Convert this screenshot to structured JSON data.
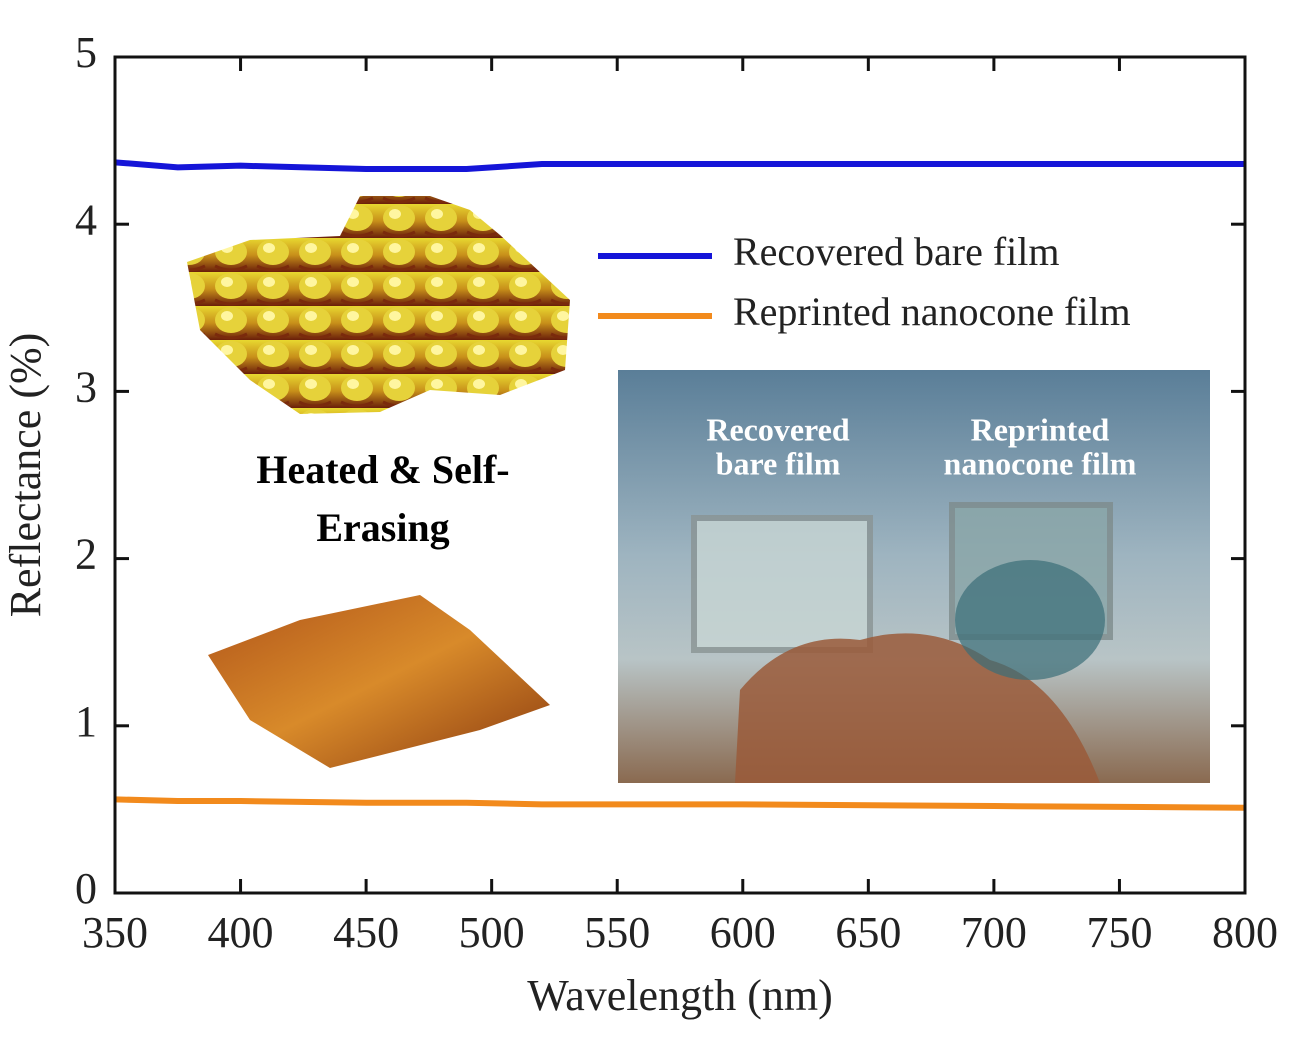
{
  "chart_data": {
    "type": "line",
    "xlabel": "Wavelength (nm)",
    "ylabel": "Reflectance (%)",
    "x": [
      350,
      375,
      400,
      450,
      490,
      520,
      600,
      700,
      800
    ],
    "series": [
      {
        "name": "Recovered bare film",
        "color": "#1515d8",
        "values": [
          4.37,
          4.34,
          4.35,
          4.33,
          4.33,
          4.36,
          4.36,
          4.36,
          4.36
        ]
      },
      {
        "name": "Reprinted nanocone film",
        "color": "#f28a1c",
        "values": [
          0.56,
          0.55,
          0.55,
          0.54,
          0.54,
          0.53,
          0.53,
          0.52,
          0.51
        ]
      }
    ],
    "xlim": [
      350,
      800
    ],
    "ylim": [
      0,
      5
    ],
    "xticks": [
      350,
      400,
      450,
      500,
      550,
      600,
      650,
      700,
      750,
      800
    ],
    "yticks": [
      0,
      1,
      2,
      3,
      4,
      5
    ],
    "legend_position": "upper right",
    "annotations": [
      {
        "lines": [
          "Heated & Self-",
          "Erasing"
        ]
      },
      {
        "lines": [
          "Recovered",
          "bare film"
        ]
      },
      {
        "lines": [
          "Reprinted",
          "nanocone film"
        ]
      }
    ]
  }
}
